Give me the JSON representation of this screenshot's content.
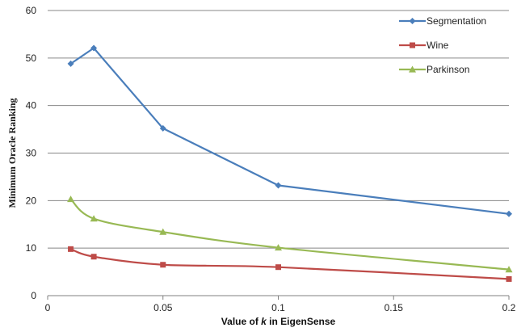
{
  "chart_data": {
    "type": "line",
    "title": "",
    "xlabel_pre": "Value of ",
    "xlabel_var": "k",
    "xlabel_post": " in EigenSense",
    "ylabel": "Minimum Oracle Ranking",
    "xlim": [
      0,
      0.2
    ],
    "ylim": [
      0,
      60
    ],
    "x_ticks": [
      0,
      0.05,
      0.1,
      0.15,
      0.2
    ],
    "x_tick_labels": [
      "0",
      "0.05",
      "0.1",
      "0.15",
      "0.2"
    ],
    "y_ticks": [
      0,
      10,
      20,
      30,
      40,
      50,
      60
    ],
    "y_tick_labels": [
      "0",
      "10",
      "20",
      "30",
      "40",
      "50",
      "60"
    ],
    "grid": "horizontal",
    "legend_position": "top-right",
    "x": [
      0.01,
      0.02,
      0.05,
      0.1,
      0.2
    ],
    "series": [
      {
        "name": "Segmentation",
        "values": [
          48.8,
          52.1,
          35.2,
          23.2,
          17.2
        ],
        "color": "#4a7ebb",
        "marker": "diamond",
        "smooth": false
      },
      {
        "name": "Wine",
        "values": [
          9.8,
          8.2,
          6.5,
          6.0,
          3.5
        ],
        "color": "#be4b48",
        "marker": "square",
        "smooth": true
      },
      {
        "name": "Parkinson",
        "values": [
          20.3,
          16.2,
          13.4,
          10.1,
          5.5
        ],
        "color": "#98b954",
        "marker": "triangle",
        "smooth": true
      }
    ]
  }
}
